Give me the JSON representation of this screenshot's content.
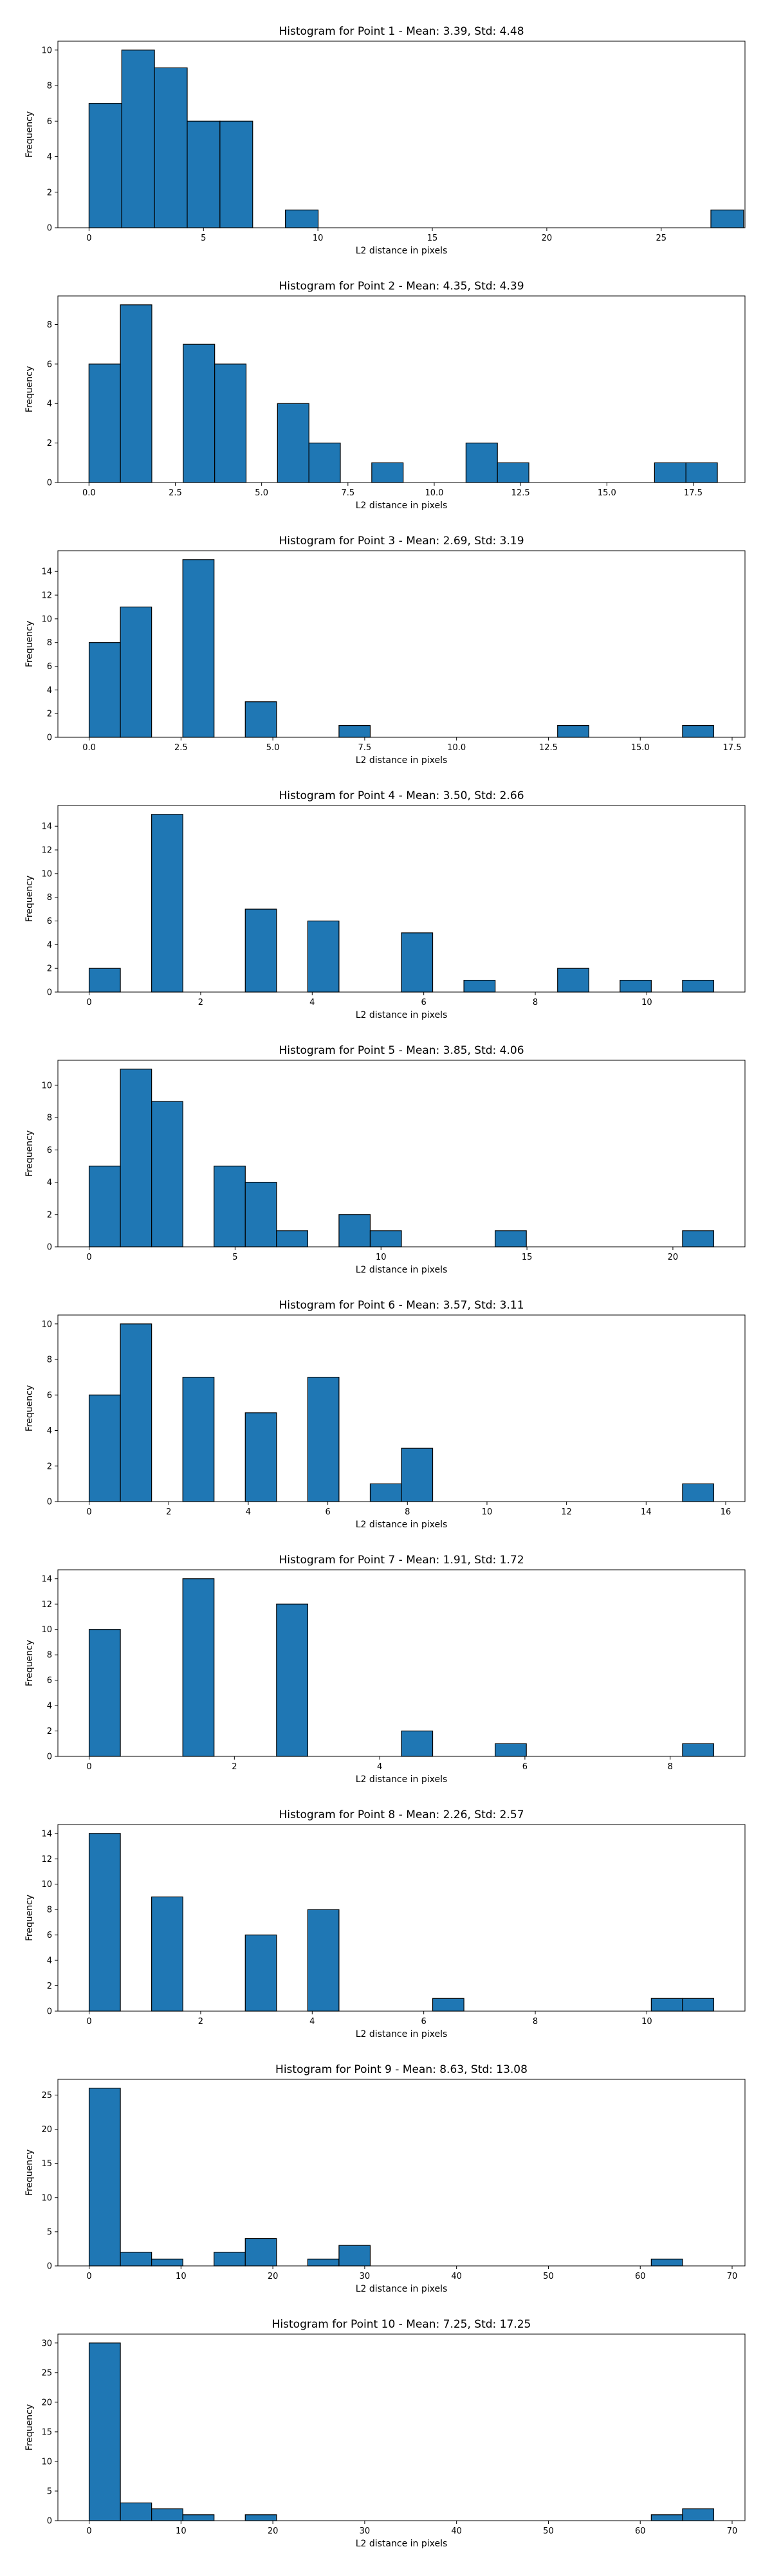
{
  "chart_data": [
    {
      "type": "bar",
      "title": "Histogram for Point 1 - Mean: 3.39, Std: 4.48",
      "xlabel": "L2 distance in pixels",
      "ylabel": "Frequency",
      "xlim": [
        -1.36,
        28.66
      ],
      "ylim": [
        0,
        10.5
      ],
      "xticks": [
        0,
        5,
        10,
        15,
        20,
        25
      ],
      "xtick_labels": [
        "0",
        "5",
        "10",
        "15",
        "20",
        "25"
      ],
      "yticks": [
        0,
        2,
        4,
        6,
        8,
        10
      ],
      "ytick_labels": [
        "0",
        "2",
        "4",
        "6",
        "8",
        "10"
      ],
      "bin_edges": [
        0.0,
        1.43,
        2.86,
        4.29,
        5.72,
        7.15,
        8.58,
        10.01,
        11.44,
        12.87,
        14.3,
        15.73,
        17.16,
        18.59,
        20.02,
        21.45,
        22.88,
        24.31,
        25.74,
        27.17,
        28.6
      ],
      "values": [
        7,
        10,
        9,
        6,
        6,
        0,
        1,
        0,
        0,
        0,
        0,
        0,
        0,
        0,
        0,
        0,
        0,
        0,
        0,
        1
      ],
      "grid": false,
      "legend": "none"
    },
    {
      "type": "bar",
      "title": "Histogram for Point 2 - Mean: 4.35, Std: 4.39",
      "xlabel": "L2 distance in pixels",
      "ylabel": "Frequency",
      "xlim": [
        -0.9,
        19.0
      ],
      "ylim": [
        0,
        9.45
      ],
      "xticks": [
        0,
        2.5,
        5,
        7.5,
        10,
        12.5,
        15,
        17.5
      ],
      "xtick_labels": [
        "0.0",
        "2.5",
        "5.0",
        "7.5",
        "10.0",
        "12.5",
        "15.0",
        "17.5"
      ],
      "yticks": [
        0,
        2,
        4,
        6,
        8
      ],
      "ytick_labels": [
        "0",
        "2",
        "4",
        "6",
        "8"
      ],
      "bin_edges": [
        0.0,
        0.91,
        1.82,
        2.73,
        3.64,
        4.55,
        5.46,
        6.37,
        7.28,
        8.19,
        9.1,
        10.01,
        10.92,
        11.83,
        12.74,
        13.65,
        14.56,
        15.47,
        16.38,
        17.29,
        18.2
      ],
      "values": [
        6,
        9,
        0,
        7,
        6,
        0,
        4,
        2,
        0,
        1,
        0,
        0,
        2,
        1,
        0,
        0,
        0,
        0,
        1,
        1
      ],
      "grid": false,
      "legend": "none"
    },
    {
      "type": "bar",
      "title": "Histogram for Point 3 - Mean: 2.69, Std: 3.19",
      "xlabel": "L2 distance in pixels",
      "ylabel": "Frequency",
      "xlim": [
        -0.85,
        17.85
      ],
      "ylim": [
        0,
        15.75
      ],
      "xticks": [
        0,
        2.5,
        5,
        7.5,
        10,
        12.5,
        15,
        17.5
      ],
      "xtick_labels": [
        "0.0",
        "2.5",
        "5.0",
        "7.5",
        "10.0",
        "12.5",
        "15.0",
        "17.5"
      ],
      "yticks": [
        0,
        2,
        4,
        6,
        8,
        10,
        12,
        14
      ],
      "ytick_labels": [
        "0",
        "2",
        "4",
        "6",
        "8",
        "10",
        "12",
        "14"
      ],
      "bin_edges": [
        0.0,
        0.85,
        1.7,
        2.55,
        3.4,
        4.25,
        5.1,
        5.95,
        6.8,
        7.65,
        8.5,
        9.35,
        10.2,
        11.05,
        11.9,
        12.75,
        13.6,
        14.45,
        15.3,
        16.15,
        17.0
      ],
      "values": [
        8,
        11,
        0,
        15,
        0,
        3,
        0,
        0,
        1,
        0,
        0,
        0,
        0,
        0,
        0,
        1,
        0,
        0,
        0,
        1
      ],
      "grid": false,
      "legend": "none"
    },
    {
      "type": "bar",
      "title": "Histogram for Point 4 - Mean: 3.50, Std: 2.66",
      "xlabel": "L2 distance in pixels",
      "ylabel": "Frequency",
      "xlim": [
        -0.56,
        11.76
      ],
      "ylim": [
        0,
        15.75
      ],
      "xticks": [
        0,
        2,
        4,
        6,
        8,
        10
      ],
      "xtick_labels": [
        "0",
        "2",
        "4",
        "6",
        "8",
        "10"
      ],
      "yticks": [
        0,
        2,
        4,
        6,
        8,
        10,
        12,
        14
      ],
      "ytick_labels": [
        "0",
        "2",
        "4",
        "6",
        "8",
        "10",
        "12",
        "14"
      ],
      "bin_edges": [
        0.0,
        0.56,
        1.12,
        1.68,
        2.24,
        2.8,
        3.36,
        3.92,
        4.48,
        5.04,
        5.6,
        6.16,
        6.72,
        7.28,
        7.84,
        8.4,
        8.96,
        9.52,
        10.08,
        10.64,
        11.2
      ],
      "values": [
        2,
        0,
        15,
        0,
        0,
        7,
        0,
        6,
        0,
        0,
        5,
        0,
        1,
        0,
        0,
        2,
        0,
        1,
        0,
        1
      ],
      "grid": false,
      "legend": "none"
    },
    {
      "type": "bar",
      "title": "Histogram for Point 5 - Mean: 3.85, Std: 4.06",
      "xlabel": "L2 distance in pixels",
      "ylabel": "Frequency",
      "xlim": [
        -1.07,
        22.47
      ],
      "ylim": [
        0,
        11.55
      ],
      "xticks": [
        0,
        5,
        10,
        15,
        20
      ],
      "xtick_labels": [
        "0",
        "5",
        "10",
        "15",
        "20"
      ],
      "yticks": [
        0,
        2,
        4,
        6,
        8,
        10
      ],
      "ytick_labels": [
        "0",
        "2",
        "4",
        "6",
        "8",
        "10"
      ],
      "bin_edges": [
        0.0,
        1.07,
        2.14,
        3.21,
        4.28,
        5.35,
        6.42,
        7.49,
        8.56,
        9.63,
        10.7,
        11.77,
        12.84,
        13.91,
        14.98,
        16.05,
        17.12,
        18.19,
        19.26,
        20.33,
        21.4
      ],
      "values": [
        5,
        11,
        9,
        0,
        5,
        4,
        1,
        0,
        2,
        1,
        0,
        0,
        0,
        1,
        0,
        0,
        0,
        0,
        0,
        1
      ],
      "grid": false,
      "legend": "none"
    },
    {
      "type": "bar",
      "title": "Histogram for Point 6 - Mean: 3.57, Std: 3.11",
      "xlabel": "L2 distance in pixels",
      "ylabel": "Frequency",
      "xlim": [
        -0.785,
        16.485
      ],
      "ylim": [
        0,
        10.5
      ],
      "xticks": [
        0,
        2,
        4,
        6,
        8,
        10,
        12,
        14,
        16
      ],
      "xtick_labels": [
        "0",
        "2",
        "4",
        "6",
        "8",
        "10",
        "12",
        "14",
        "16"
      ],
      "yticks": [
        0,
        2,
        4,
        6,
        8,
        10
      ],
      "ytick_labels": [
        "0",
        "2",
        "4",
        "6",
        "8",
        "10"
      ],
      "bin_edges": [
        0.0,
        0.785,
        1.57,
        2.355,
        3.14,
        3.925,
        4.71,
        5.495,
        6.28,
        7.065,
        7.85,
        8.635,
        9.42,
        10.205,
        10.99,
        11.775,
        12.56,
        13.345,
        14.13,
        14.915,
        15.7
      ],
      "values": [
        6,
        10,
        0,
        7,
        0,
        5,
        0,
        7,
        0,
        1,
        3,
        0,
        0,
        0,
        0,
        0,
        0,
        0,
        0,
        1
      ],
      "grid": false,
      "legend": "none"
    },
    {
      "type": "bar",
      "title": "Histogram for Point 7 - Mean: 1.91, Std: 1.72",
      "xlabel": "L2 distance in pixels",
      "ylabel": "Frequency",
      "xlim": [
        -0.43,
        9.03
      ],
      "ylim": [
        0,
        14.7
      ],
      "xticks": [
        0,
        2,
        4,
        6,
        8
      ],
      "xtick_labels": [
        "0",
        "2",
        "4",
        "6",
        "8"
      ],
      "yticks": [
        0,
        2,
        4,
        6,
        8,
        10,
        12,
        14
      ],
      "ytick_labels": [
        "0",
        "2",
        "4",
        "6",
        "8",
        "10",
        "12",
        "14"
      ],
      "bin_edges": [
        0.0,
        0.43,
        0.86,
        1.29,
        1.72,
        2.15,
        2.58,
        3.01,
        3.44,
        3.87,
        4.3,
        4.73,
        5.16,
        5.59,
        6.02,
        6.45,
        6.88,
        7.31,
        7.74,
        8.17,
        8.6
      ],
      "values": [
        10,
        0,
        0,
        14,
        0,
        0,
        12,
        0,
        0,
        0,
        2,
        0,
        0,
        1,
        0,
        0,
        0,
        0,
        0,
        1
      ],
      "grid": false,
      "legend": "none"
    },
    {
      "type": "bar",
      "title": "Histogram for Point 8 - Mean: 2.26, Std: 2.57",
      "xlabel": "L2 distance in pixels",
      "ylabel": "Frequency",
      "xlim": [
        -0.56,
        11.76
      ],
      "ylim": [
        0,
        14.7
      ],
      "xticks": [
        0,
        2,
        4,
        6,
        8,
        10
      ],
      "xtick_labels": [
        "0",
        "2",
        "4",
        "6",
        "8",
        "10"
      ],
      "yticks": [
        0,
        2,
        4,
        6,
        8,
        10,
        12,
        14
      ],
      "ytick_labels": [
        "0",
        "2",
        "4",
        "6",
        "8",
        "10",
        "12",
        "14"
      ],
      "bin_edges": [
        0.0,
        0.56,
        1.12,
        1.68,
        2.24,
        2.8,
        3.36,
        3.92,
        4.48,
        5.04,
        5.6,
        6.16,
        6.72,
        7.28,
        7.84,
        8.4,
        8.96,
        9.52,
        10.08,
        10.64,
        11.2
      ],
      "values": [
        14,
        0,
        9,
        0,
        0,
        6,
        0,
        8,
        0,
        0,
        0,
        1,
        0,
        0,
        0,
        0,
        0,
        0,
        1,
        1
      ],
      "grid": false,
      "legend": "none"
    },
    {
      "type": "bar",
      "title": "Histogram for Point 9 - Mean: 8.63, Std: 13.08",
      "xlabel": "L2 distance in pixels",
      "ylabel": "Frequency",
      "xlim": [
        -3.4,
        71.4
      ],
      "ylim": [
        0,
        27.3
      ],
      "xticks": [
        0,
        10,
        20,
        30,
        40,
        50,
        60,
        70
      ],
      "xtick_labels": [
        "0",
        "10",
        "20",
        "30",
        "40",
        "50",
        "60",
        "70"
      ],
      "yticks": [
        0,
        5,
        10,
        15,
        20,
        25
      ],
      "ytick_labels": [
        "0",
        "5",
        "10",
        "15",
        "20",
        "25"
      ],
      "bin_edges": [
        0.0,
        3.4,
        6.8,
        10.2,
        13.6,
        17.0,
        20.4,
        23.8,
        27.2,
        30.6,
        34.0,
        37.4,
        40.8,
        44.2,
        47.6,
        51.0,
        54.4,
        57.8,
        61.2,
        64.6,
        68.0
      ],
      "values": [
        26,
        2,
        1,
        0,
        2,
        4,
        0,
        1,
        3,
        0,
        0,
        0,
        0,
        0,
        0,
        0,
        0,
        0,
        1,
        0
      ],
      "grid": false,
      "legend": "none"
    },
    {
      "type": "bar",
      "title": "Histogram for Point 10 - Mean: 7.25, Std: 17.25",
      "xlabel": "L2 distance in pixels",
      "ylabel": "Frequency",
      "xlim": [
        -3.4,
        71.4
      ],
      "ylim": [
        0,
        31.5
      ],
      "xticks": [
        0,
        10,
        20,
        30,
        40,
        50,
        60,
        70
      ],
      "xtick_labels": [
        "0",
        "10",
        "20",
        "30",
        "40",
        "50",
        "60",
        "70"
      ],
      "yticks": [
        0,
        5,
        10,
        15,
        20,
        25,
        30
      ],
      "ytick_labels": [
        "0",
        "5",
        "10",
        "15",
        "20",
        "25",
        "30"
      ],
      "bin_edges": [
        0.0,
        3.4,
        6.8,
        10.2,
        13.6,
        17.0,
        20.4,
        23.8,
        27.2,
        30.6,
        34.0,
        37.4,
        40.8,
        44.2,
        47.6,
        51.0,
        54.4,
        57.8,
        61.2,
        64.6,
        68.0
      ],
      "values": [
        30,
        3,
        2,
        1,
        0,
        1,
        0,
        0,
        0,
        0,
        0,
        0,
        0,
        0,
        0,
        0,
        0,
        0,
        1,
        2
      ],
      "grid": false,
      "legend": "none"
    }
  ]
}
